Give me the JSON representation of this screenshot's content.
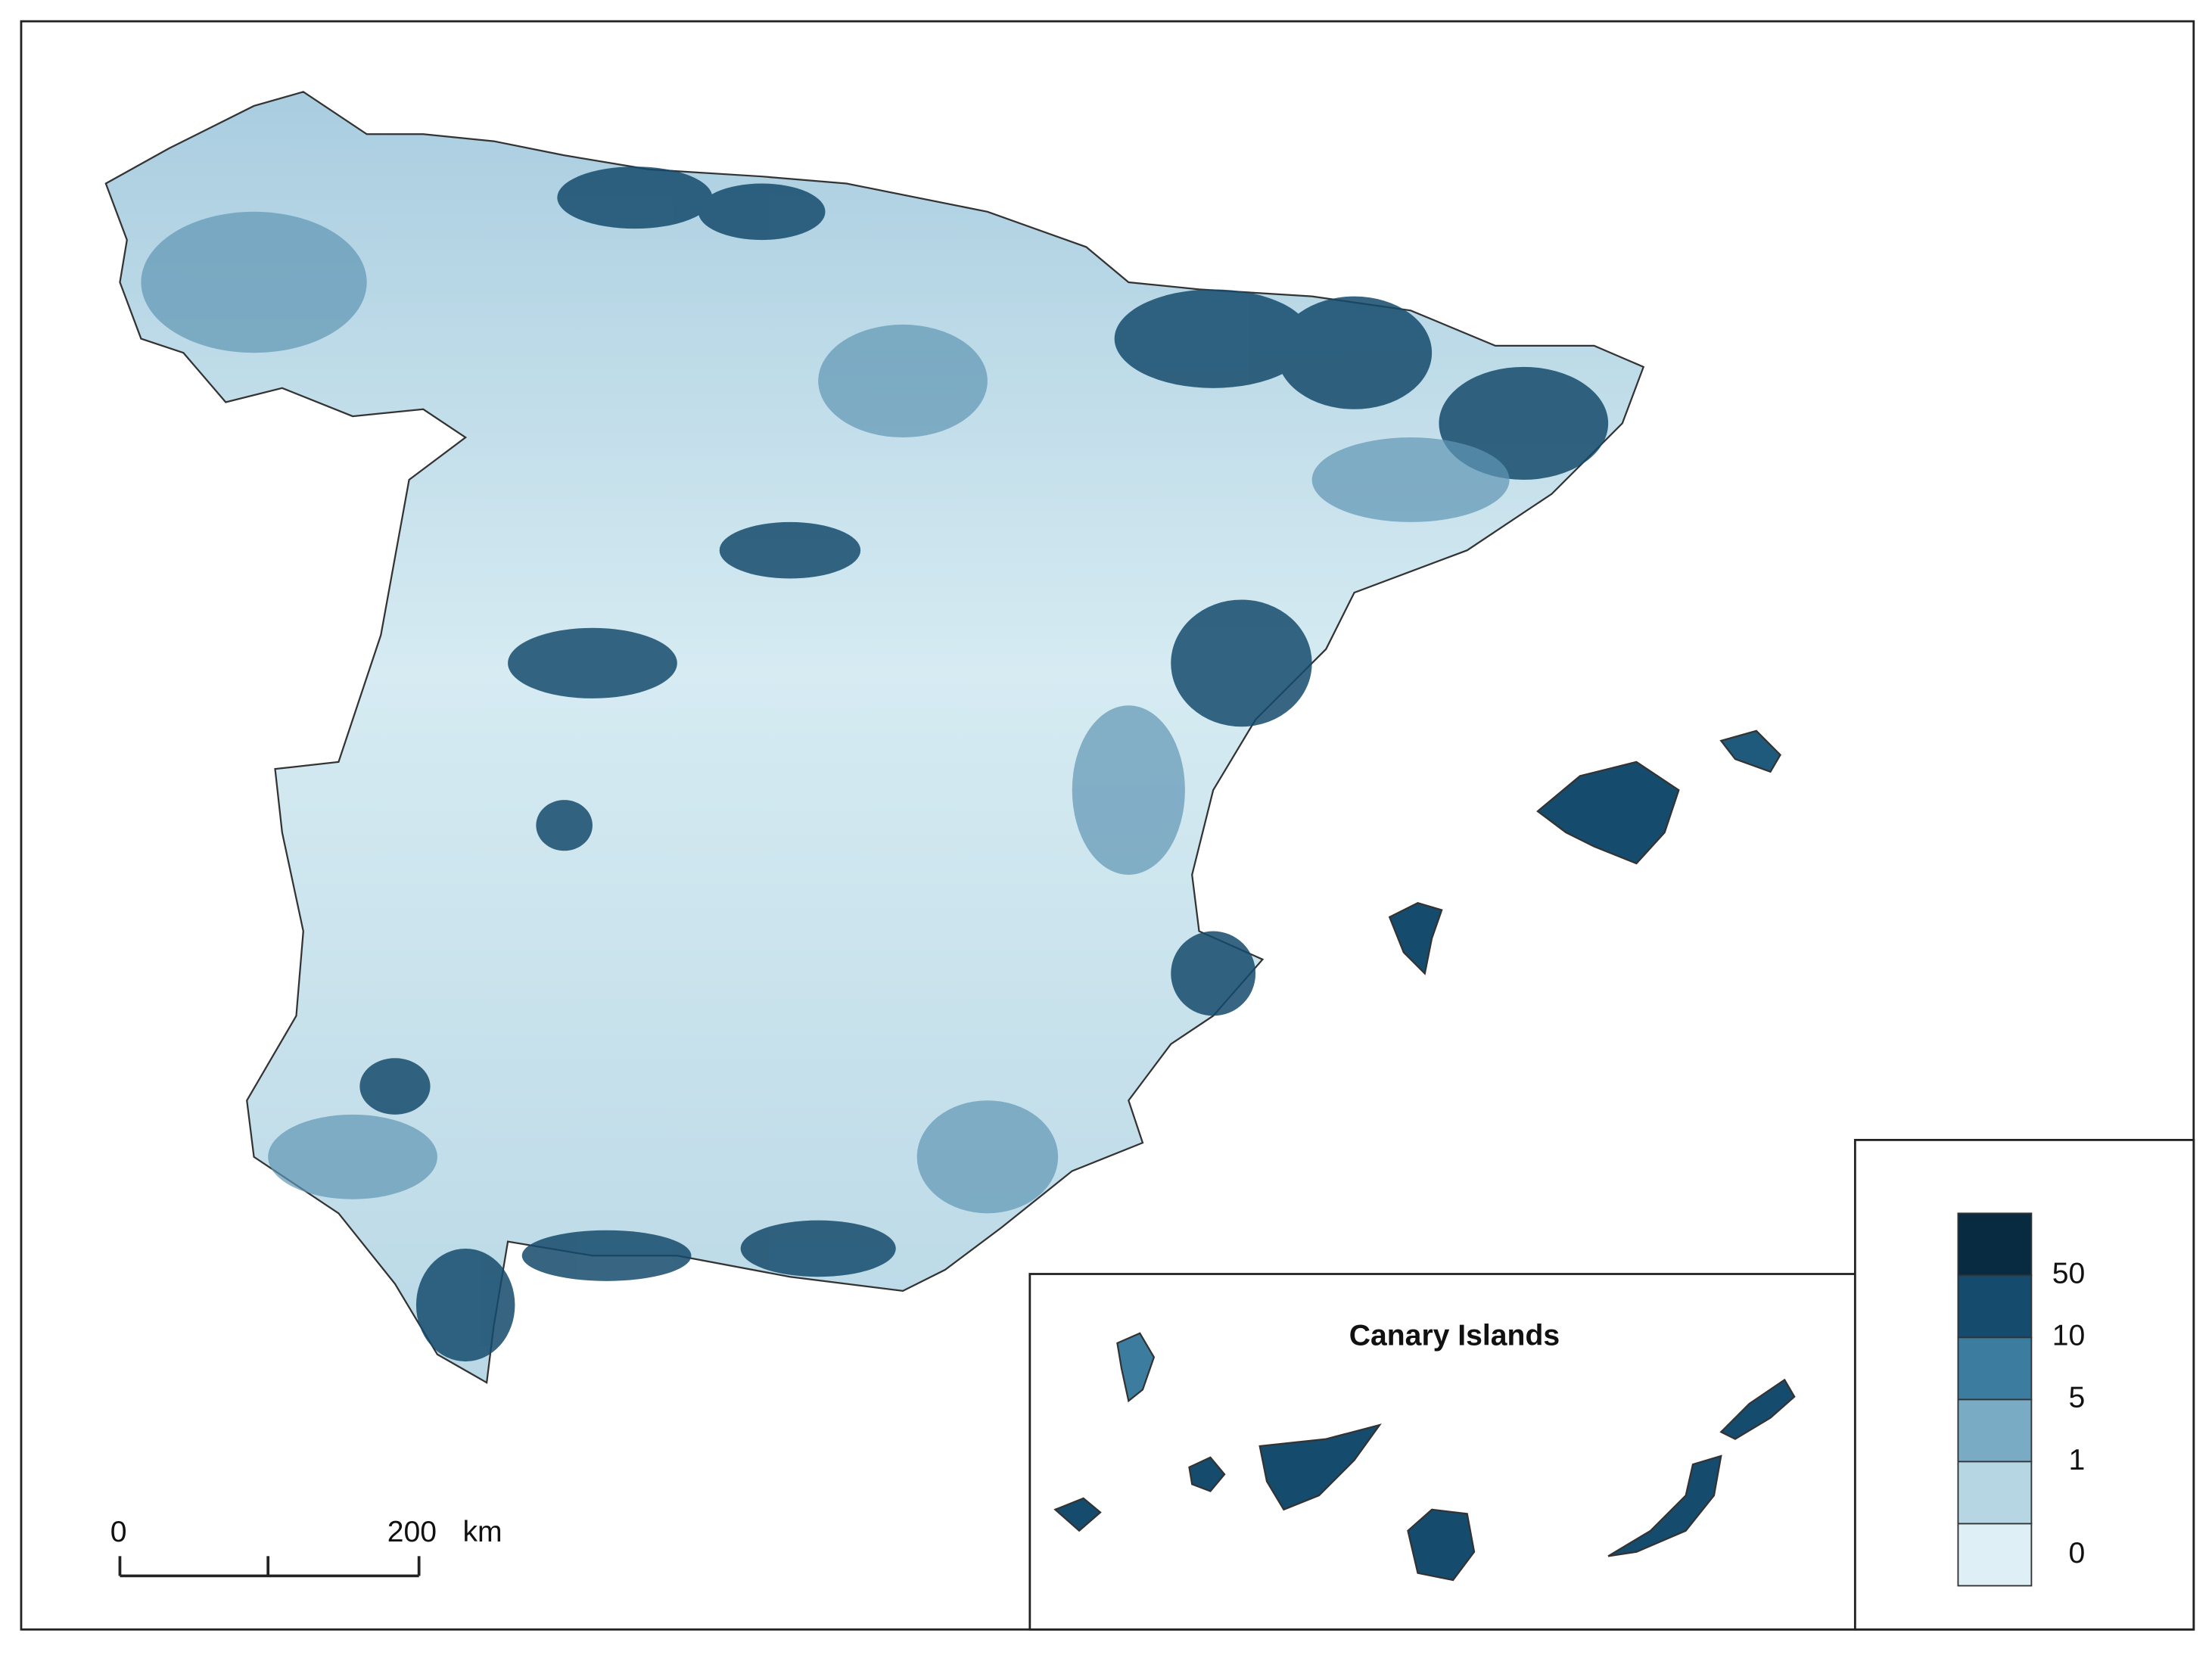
{
  "inset": {
    "title": "Canary Islands"
  },
  "legend": {
    "colors": [
      "#082b42",
      "#154b6c",
      "#3b7c9f",
      "#7aabc5",
      "#b7d6e4",
      "#def0f5"
    ],
    "breaks": [
      50,
      10,
      5,
      1,
      0
    ]
  },
  "scale_bar": {
    "ticks": [
      0,
      200
    ],
    "unit": "km"
  }
}
